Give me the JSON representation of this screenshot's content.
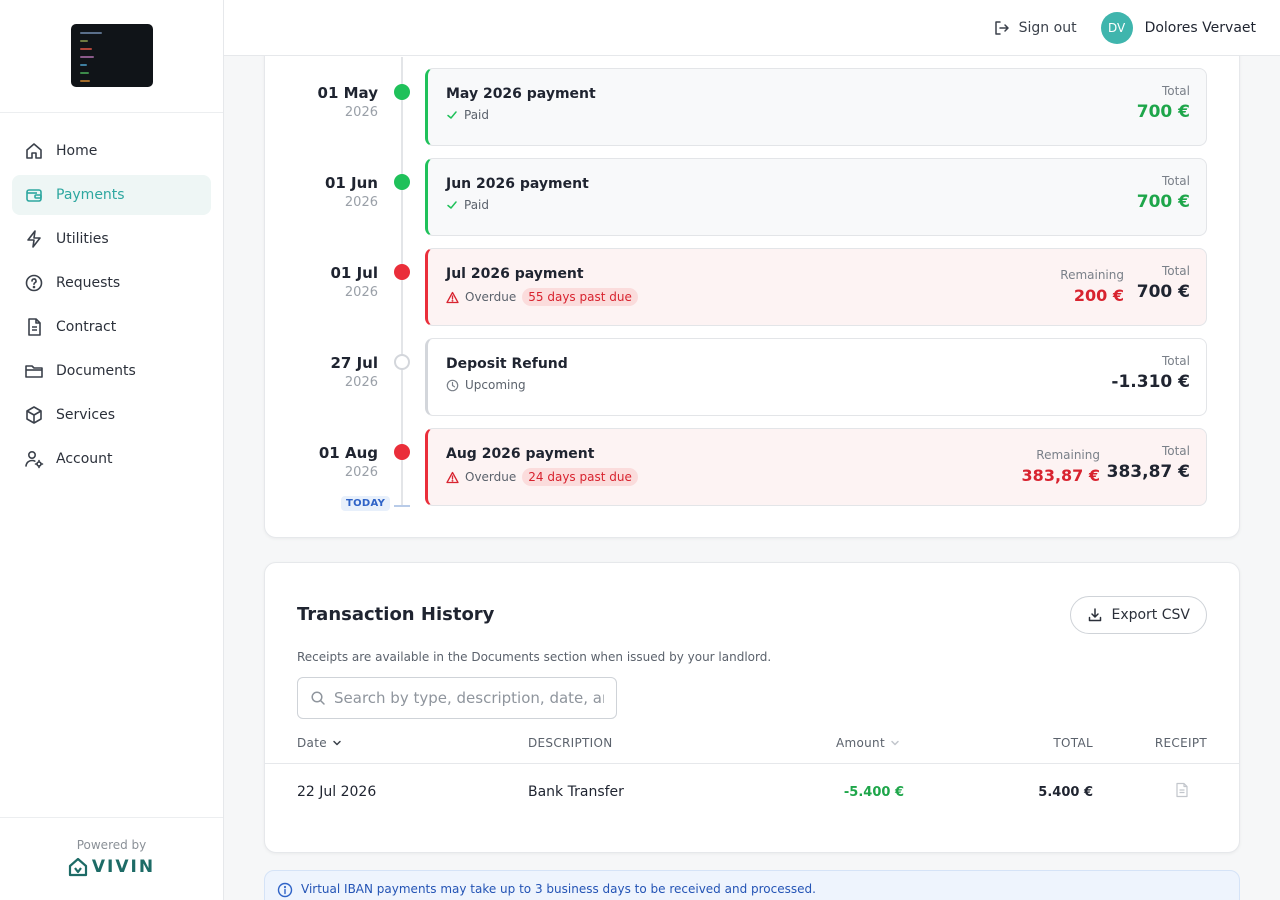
{
  "user": {
    "initials": "DV",
    "name": "Dolores Vervaet"
  },
  "topbar": {
    "signout_label": "Sign out"
  },
  "nav": [
    {
      "label": "Home",
      "icon": "home-icon"
    },
    {
      "label": "Payments",
      "icon": "wallet-icon",
      "active": true
    },
    {
      "label": "Utilities",
      "icon": "lightning-icon"
    },
    {
      "label": "Requests",
      "icon": "question-icon"
    },
    {
      "label": "Contract",
      "icon": "document-icon"
    },
    {
      "label": "Documents",
      "icon": "folder-icon"
    },
    {
      "label": "Services",
      "icon": "box-icon"
    },
    {
      "label": "Account",
      "icon": "user-gear-icon"
    }
  ],
  "powered": {
    "label": "Powered by",
    "brand": "VIVIN"
  },
  "timeline": {
    "today_label": "TODAY",
    "items": [
      {
        "day": "01 May",
        "year": "2026",
        "title": "May 2026 payment",
        "status": "Paid",
        "total_label": "Total",
        "total": "700 €"
      },
      {
        "day": "01 Jun",
        "year": "2026",
        "title": "Jun 2026 payment",
        "status": "Paid",
        "total_label": "Total",
        "total": "700 €"
      },
      {
        "day": "01 Jul",
        "year": "2026",
        "title": "Jul 2026 payment",
        "status": "Overdue",
        "badge": "55 days past due",
        "remaining_label": "Remaining",
        "remaining": "200 €",
        "total_label": "Total",
        "total": "700 €"
      },
      {
        "day": "27 Jul",
        "year": "2026",
        "title": "Deposit Refund",
        "status": "Upcoming",
        "total_label": "Total",
        "total": "-1.310 €"
      },
      {
        "day": "01 Aug",
        "year": "2026",
        "title": "Aug 2026 payment",
        "status": "Overdue",
        "badge": "24 days past due",
        "remaining_label": "Remaining",
        "remaining": "383,87 €",
        "total_label": "Total",
        "total": "383,87 €"
      }
    ]
  },
  "transactions": {
    "title": "Transaction History",
    "export_label": "Export CSV",
    "note": "Receipts are available in the Documents section when issued by your landlord.",
    "search_placeholder": "Search by type, description, date, amount",
    "columns": {
      "date": "Date",
      "description": "DESCRIPTION",
      "amount": "Amount",
      "total": "TOTAL",
      "receipt": "RECEIPT"
    },
    "rows": [
      {
        "date": "22 Jul 2026",
        "description": "Bank Transfer",
        "amount": "-5.400 €",
        "total": "5.400 €"
      }
    ]
  },
  "info": {
    "text": "Virtual IBAN payments may take up to 3 business days to be received and processed."
  },
  "colors": {
    "accent": "#3fb5ad",
    "paid": "#1fc15a",
    "overdue": "#ea2e3a"
  }
}
